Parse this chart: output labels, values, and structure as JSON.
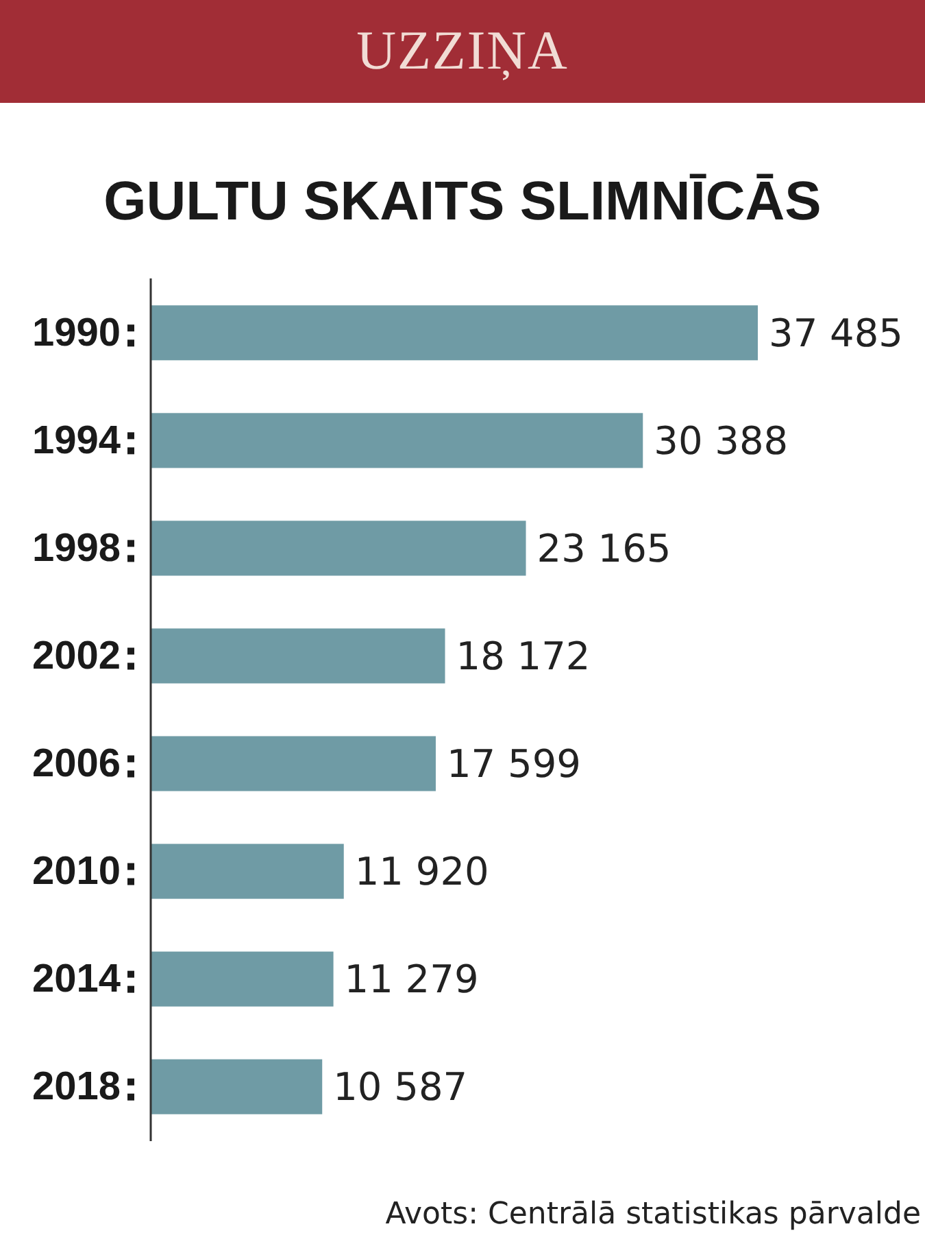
{
  "chart_data": {
    "type": "bar",
    "orientation": "horizontal",
    "title": "GULTU SKAITS SLIMNĪCĀS",
    "categories": [
      "1990",
      "1994",
      "1998",
      "2002",
      "2006",
      "2010",
      "2014",
      "2018"
    ],
    "values": [
      37485,
      30388,
      23165,
      18172,
      17599,
      11920,
      11279,
      10587
    ],
    "value_labels": [
      "37 485",
      "30 388",
      "23 165",
      "18 172",
      "17 599",
      "11 920",
      "11 279",
      "10 587"
    ],
    "color": "#6f9ba5",
    "tick_labels": "y",
    "annotations": [
      "UZZIŅA",
      "Avots: Centrālā statistikas pārvalde"
    ]
  }
}
